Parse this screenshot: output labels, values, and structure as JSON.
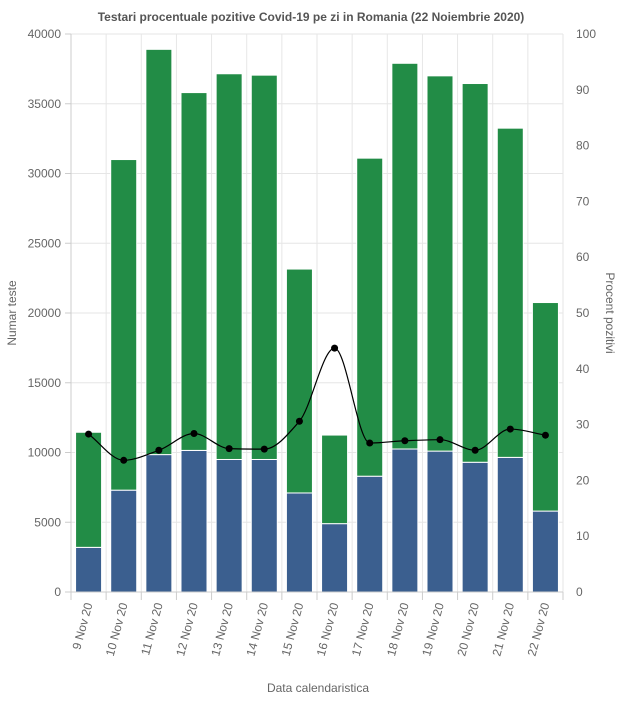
{
  "chart_data": {
    "type": "bar",
    "title": "Testari procentuale pozitive Covid-19 pe zi in Romania (22 Noiembrie 2020)",
    "xlabel": "Data calendaristica",
    "ylabel": "Numar teste",
    "y2label": "Procent pozitivi",
    "stacked": true,
    "categories": [
      "9 Nov 20",
      "10 Nov 20",
      "11 Nov 20",
      "12 Nov 20",
      "13 Nov 20",
      "14 Nov 20",
      "15 Nov 20",
      "16 Nov 20",
      "17 Nov 20",
      "18 Nov 20",
      "19 Nov 20",
      "20 Nov 20",
      "21 Nov 20",
      "22 Nov 20"
    ],
    "series": [
      {
        "type": "bar",
        "axis": "left",
        "color": "#3b5f8f",
        "values": [
          3200,
          7300,
          9850,
          10150,
          9500,
          9500,
          7100,
          4900,
          8300,
          10250,
          10100,
          9300,
          9650,
          5800
        ]
      },
      {
        "type": "bar",
        "axis": "left",
        "color": "#228c46",
        "values": [
          8250,
          23700,
          29050,
          25650,
          27650,
          27550,
          16050,
          6350,
          22800,
          27650,
          26900,
          27150,
          23600,
          14950
        ]
      },
      {
        "type": "line",
        "axis": "right",
        "color": "#000000",
        "values": [
          28.3,
          23.6,
          25.4,
          28.4,
          25.7,
          25.6,
          30.6,
          43.7,
          26.7,
          27.1,
          27.3,
          25.4,
          29.2,
          28.1
        ]
      }
    ],
    "ylim": [
      0,
      40000
    ],
    "yticks": [
      0,
      5000,
      10000,
      15000,
      20000,
      25000,
      30000,
      35000,
      40000
    ],
    "y2lim": [
      0,
      100
    ],
    "y2ticks": [
      0,
      10,
      20,
      30,
      40,
      50,
      60,
      70,
      80,
      90,
      100
    ],
    "grid": true,
    "legend": "none"
  }
}
